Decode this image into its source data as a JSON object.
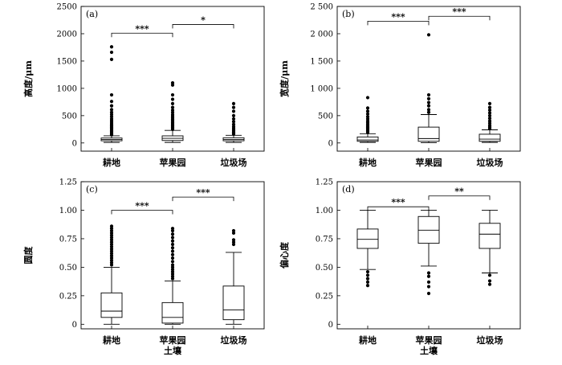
{
  "chart_data": [
    {
      "type": "boxplot",
      "panel_label": "(a)",
      "ylabel": "高度/μm",
      "xlabel": "",
      "categories": [
        "耕地",
        "苹果园",
        "垃圾场"
      ],
      "yticks": [
        0,
        500,
        1000,
        1500,
        2000,
        2500
      ],
      "ytick_labels": [
        "0",
        "500",
        "1000",
        "1500",
        "2000",
        "2500"
      ],
      "ylim": [
        -150,
        2500
      ],
      "boxes": [
        {
          "category": "耕地",
          "whisker_low": 10,
          "q1": 40,
          "median": 65,
          "q3": 90,
          "whisker_high": 130,
          "outliers": [
            150,
            170,
            190,
            210,
            230,
            250,
            270,
            290,
            310,
            330,
            350,
            380,
            410,
            440,
            480,
            520,
            560,
            610,
            680,
            760,
            880,
            1530,
            1660,
            1760
          ]
        },
        {
          "category": "苹果园",
          "whisker_low": 10,
          "q1": 45,
          "median": 85,
          "q3": 130,
          "whisker_high": 230,
          "outliers": [
            250,
            270,
            290,
            310,
            330,
            350,
            370,
            400,
            430,
            460,
            490,
            520,
            560,
            600,
            650,
            720,
            800,
            880,
            1060,
            1100
          ]
        },
        {
          "category": "垃圾场",
          "whisker_low": 10,
          "q1": 40,
          "median": 65,
          "q3": 95,
          "whisker_high": 140,
          "outliers": [
            160,
            180,
            200,
            220,
            240,
            270,
            300,
            340,
            390,
            440,
            500,
            580,
            650,
            720
          ]
        }
      ],
      "significance": [
        {
          "from": "耕地",
          "to": "苹果园",
          "y": 2010,
          "label": "***"
        },
        {
          "from": "苹果园",
          "to": "垃圾场",
          "y": 2170,
          "label": "*"
        }
      ]
    },
    {
      "type": "boxplot",
      "panel_label": "(b)",
      "ylabel": "宽度/μm",
      "xlabel": "",
      "categories": [
        "耕地",
        "苹果园",
        "垃圾场"
      ],
      "yticks": [
        0,
        500,
        1000,
        1500,
        2000,
        2500
      ],
      "ytick_labels": [
        "0",
        "500",
        "1 000",
        "1 500",
        "2 000",
        "2 500"
      ],
      "ylim": [
        -150,
        2500
      ],
      "boxes": [
        {
          "category": "耕地",
          "whisker_low": 10,
          "q1": 30,
          "median": 55,
          "q3": 110,
          "whisker_high": 170,
          "outliers": [
            190,
            210,
            230,
            250,
            270,
            290,
            310,
            340,
            370,
            400,
            440,
            480,
            530,
            580,
            640,
            830
          ]
        },
        {
          "category": "苹果园",
          "whisker_low": 5,
          "q1": 30,
          "median": 80,
          "q3": 290,
          "whisker_high": 520,
          "outliers": [
            560,
            610,
            680,
            740,
            810,
            880,
            1980
          ]
        },
        {
          "category": "垃圾场",
          "whisker_low": 10,
          "q1": 30,
          "median": 70,
          "q3": 160,
          "whisker_high": 240,
          "outliers": [
            260,
            290,
            320,
            360,
            400,
            450,
            500,
            550,
            600,
            650,
            720
          ]
        }
      ],
      "significance": [
        {
          "from": "耕地",
          "to": "苹果园",
          "y": 2230,
          "label": "***"
        },
        {
          "from": "苹果园",
          "to": "垃圾场",
          "y": 2320,
          "label": "***"
        }
      ]
    },
    {
      "type": "boxplot",
      "panel_label": "(c)",
      "ylabel": "圆度",
      "xlabel": "土壤",
      "categories": [
        "耕地",
        "苹果园",
        "垃圾场"
      ],
      "yticks": [
        0,
        0.25,
        0.5,
        0.75,
        1.0,
        1.25
      ],
      "ytick_labels": [
        "0",
        "0.25",
        "0.50",
        "0.75",
        "1.00",
        "1.25"
      ],
      "ylim": [
        -0.04,
        1.25
      ],
      "boxes": [
        {
          "category": "耕地",
          "whisker_low": 0.0,
          "q1": 0.06,
          "median": 0.115,
          "q3": 0.275,
          "whisker_high": 0.5,
          "outliers": [
            0.52,
            0.54,
            0.56,
            0.58,
            0.6,
            0.62,
            0.64,
            0.66,
            0.68,
            0.7,
            0.72,
            0.74,
            0.76,
            0.78,
            0.8,
            0.82,
            0.84,
            0.86
          ]
        },
        {
          "category": "苹果园",
          "whisker_low": 0.0,
          "q1": 0.01,
          "median": 0.06,
          "q3": 0.19,
          "whisker_high": 0.38,
          "outliers": [
            0.4,
            0.42,
            0.44,
            0.46,
            0.48,
            0.5,
            0.52,
            0.55,
            0.58,
            0.61,
            0.64,
            0.67,
            0.7,
            0.73,
            0.76,
            0.79,
            0.82,
            0.84
          ]
        },
        {
          "category": "垃圾场",
          "whisker_low": 0.0,
          "q1": 0.04,
          "median": 0.125,
          "q3": 0.335,
          "whisker_high": 0.63,
          "outliers": [
            0.7,
            0.72,
            0.74,
            0.8,
            0.82
          ]
        }
      ],
      "significance": [
        {
          "from": "耕地",
          "to": "苹果园",
          "y": 1.0,
          "label": "***"
        },
        {
          "from": "苹果园",
          "to": "垃圾场",
          "y": 1.115,
          "label": "***"
        }
      ]
    },
    {
      "type": "boxplot",
      "panel_label": "(d)",
      "ylabel": "偏心度",
      "xlabel": "土壤",
      "categories": [
        "耕地",
        "苹果园",
        "垃圾场"
      ],
      "yticks": [
        0,
        0.25,
        0.5,
        0.75,
        1.0,
        1.25
      ],
      "ytick_labels": [
        "0",
        "0.25",
        "0.50",
        "0.75",
        "1.00",
        "1.25"
      ],
      "ylim": [
        -0.04,
        1.25
      ],
      "boxes": [
        {
          "category": "耕地",
          "whisker_low": 0.48,
          "q1": 0.665,
          "median": 0.745,
          "q3": 0.835,
          "whisker_high": 1.0,
          "outliers": [
            0.34,
            0.37,
            0.4,
            0.43,
            0.46
          ]
        },
        {
          "category": "苹果园",
          "whisker_low": 0.51,
          "q1": 0.71,
          "median": 0.825,
          "q3": 0.945,
          "whisker_high": 1.0,
          "outliers": [
            0.27,
            0.33,
            0.37,
            0.42,
            0.45
          ]
        },
        {
          "category": "垃圾场",
          "whisker_low": 0.45,
          "q1": 0.665,
          "median": 0.79,
          "q3": 0.885,
          "whisker_high": 1.0,
          "outliers": [
            0.35,
            0.38,
            0.43
          ]
        }
      ],
      "significance": [
        {
          "from": "耕地",
          "to": "苹果园",
          "y": 1.03,
          "label": "***"
        },
        {
          "from": "苹果园",
          "to": "垃圾场",
          "y": 1.125,
          "label": "**"
        }
      ]
    }
  ]
}
